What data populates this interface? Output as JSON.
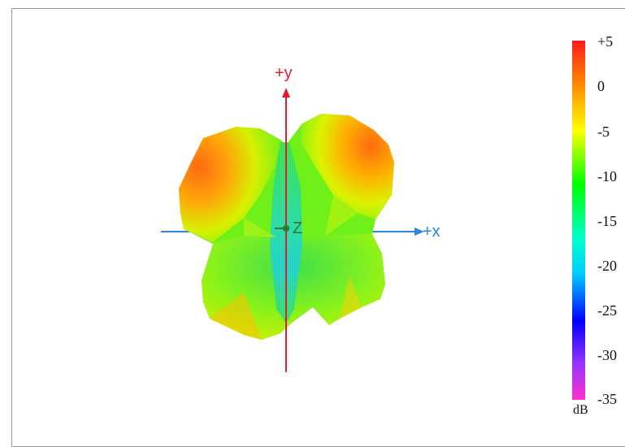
{
  "axes": {
    "y_label": "+y",
    "x_label": "+x",
    "z_label": "Z",
    "y_color": "#e01c2c",
    "x_color": "#2a86e0",
    "z_color": "#2f7a2f"
  },
  "colorbar": {
    "unit": "dB",
    "ticks": [
      "+5",
      "0",
      "-5",
      "-10",
      "-15",
      "-20",
      "-25",
      "-30",
      "-35"
    ],
    "range_db": [
      -35,
      5
    ],
    "gradient": [
      "#ff1a1a",
      "#ff8c00",
      "#ffff00",
      "#00ff00",
      "#00ffcc",
      "#00ccff",
      "#0000ff",
      "#9933ff",
      "#ff33cc"
    ]
  },
  "pattern": {
    "description_colors": [
      "#ff7a14",
      "#ffe600",
      "#7cff00",
      "#35e83a",
      "#2ad6c8"
    ]
  }
}
